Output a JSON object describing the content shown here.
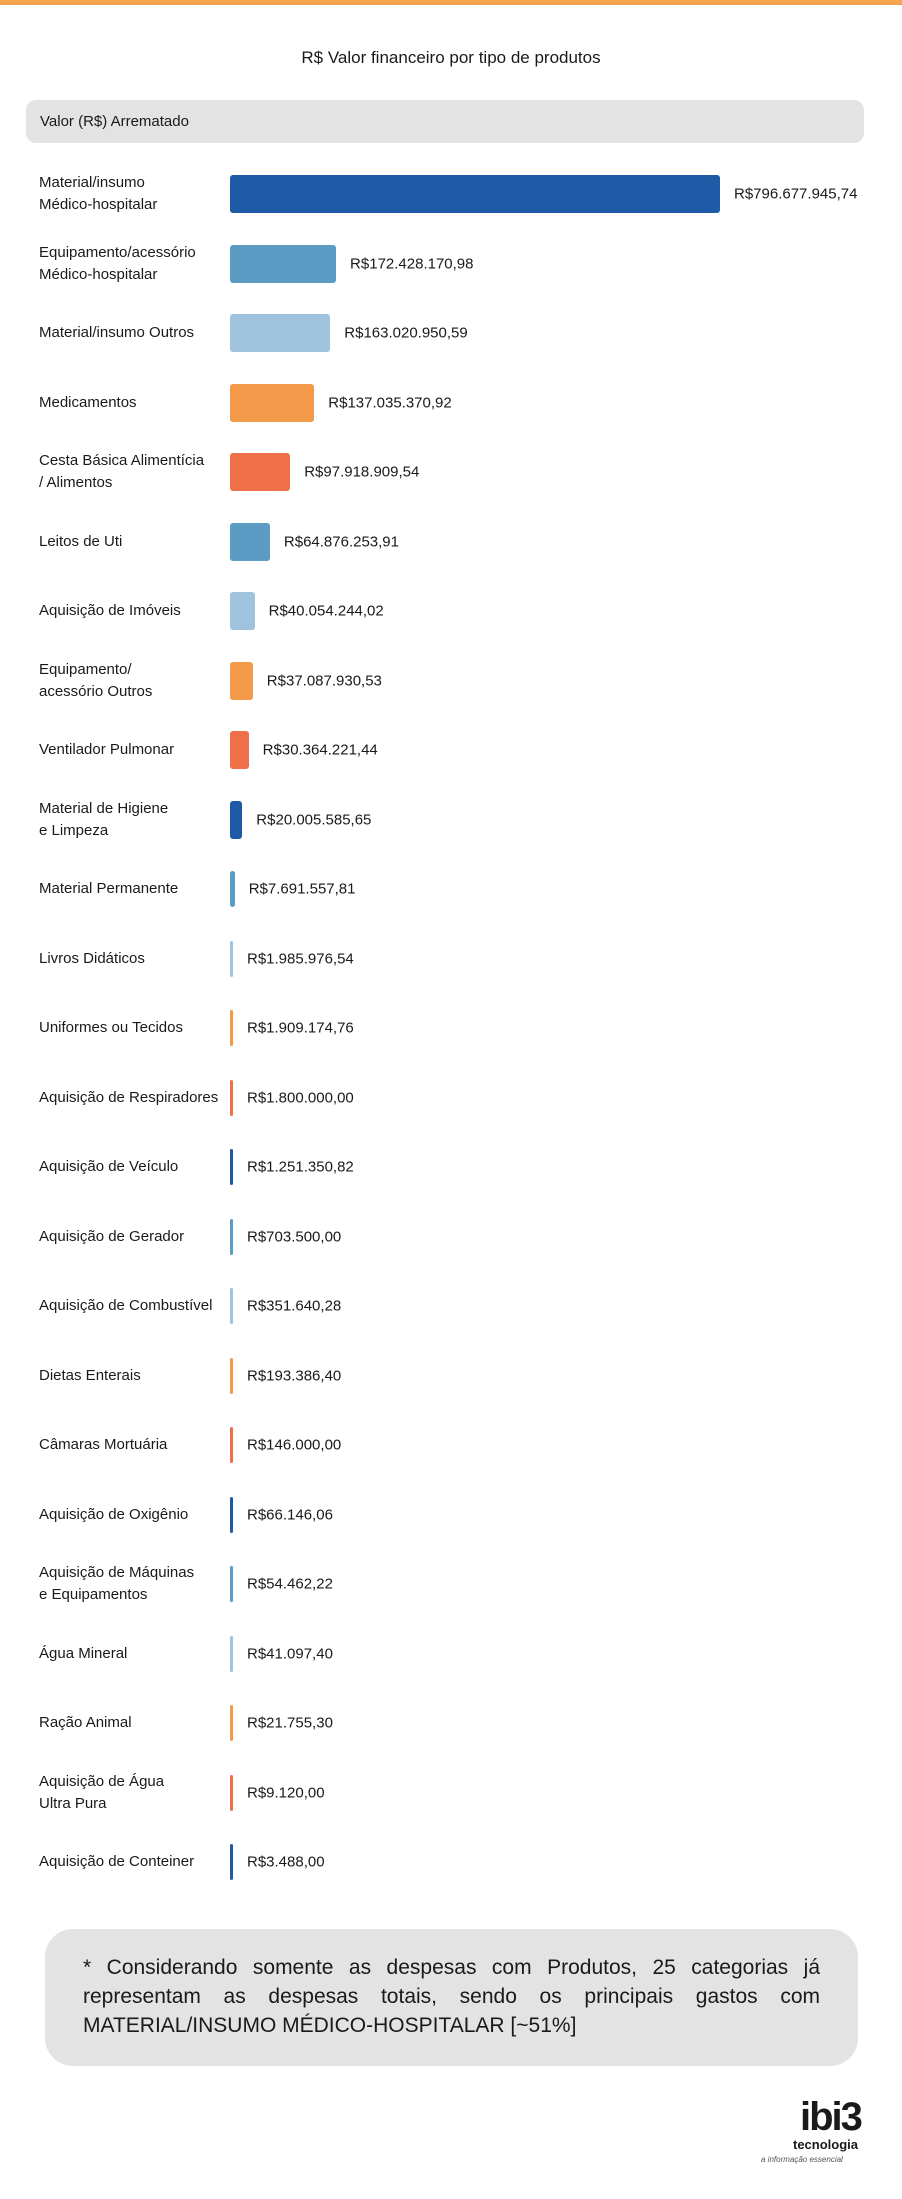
{
  "chart_data": {
    "type": "bar",
    "orientation": "horizontal",
    "title": "R$ Valor financeiro por tipo de produtos",
    "value_header": "Valor (R$) Arrematado",
    "categories": [
      "Material/insumo\nMédico-hospitalar",
      "Equipamento/acessório\nMédico-hospitalar",
      "Material/insumo Outros",
      "Medicamentos",
      "Cesta Básica Alimentícia\n/ Alimentos",
      "Leitos de Uti",
      "Aquisição de Imóveis",
      "Equipamento/\nacessório Outros",
      "Ventilador Pulmonar",
      "Material de Higiene\ne Limpeza",
      "Material Permanente",
      "Livros Didáticos",
      "Uniformes ou Tecidos",
      "Aquisição de Respiradores",
      "Aquisição de Veículo",
      "Aquisição de Gerador",
      "Aquisição de Combustível",
      "Dietas Enterais",
      "Câmaras Mortuária",
      "Aquisição de Oxigênio",
      "Aquisição de Máquinas\ne Equipamentos",
      "Água Mineral",
      "Ração Animal",
      "Aquisição de Água\nUltra Pura",
      "Aquisição de Conteiner"
    ],
    "values": [
      796677945.74,
      172428170.98,
      163020950.59,
      137035370.92,
      97918909.54,
      64876253.91,
      40054244.02,
      37087930.53,
      30364221.44,
      20005585.65,
      7691557.81,
      1985976.54,
      1909174.76,
      1800000.0,
      1251350.82,
      703500.0,
      351640.28,
      193386.4,
      146000.0,
      66146.06,
      54462.22,
      41097.4,
      21755.3,
      9120.0,
      3488.0
    ],
    "value_labels": [
      "R$796.677.945,74",
      "R$172.428.170,98",
      "R$163.020.950,59",
      "R$137.035.370,92",
      "R$97.918.909,54",
      "R$64.876.253,91",
      "R$40.054.244,02",
      "R$37.087.930,53",
      "R$30.364.221,44",
      "R$20.005.585,65",
      "R$7.691.557,81",
      "R$1.985.976,54",
      "R$1.909.174,76",
      "R$1.800.000,00",
      "R$1.251.350,82",
      "R$703.500,00",
      "R$351.640,28",
      "R$193.386,40",
      "R$146.000,00",
      "R$66.146,06",
      "R$54.462,22",
      "R$41.097,40",
      "R$21.755,30",
      "R$9.120,00",
      "R$3.488,00"
    ],
    "colors": [
      "#1f5aa6",
      "#5b9bc4",
      "#9fc3dc",
      "#f39a4a",
      "#ef7048",
      "#5b9bc4",
      "#9fc3dc",
      "#f39a4a",
      "#ef7048",
      "#1f5aa6",
      "#5b9bc4",
      "#9fc3dc",
      "#f39a4a",
      "#ef7048",
      "#1f5aa6",
      "#5b9bc4",
      "#9fc3dc",
      "#f39a4a",
      "#ef7048",
      "#1f5aa6",
      "#5b9bc4",
      "#9fc3dc",
      "#f39a4a",
      "#ef7048",
      "#1f5aa6"
    ]
  },
  "footnote": "* Considerando somente as despesas com Produtos, 25 categorias já representam as despesas totais, sendo os principais gastos com MATERIAL/INSUMO MÉDICO-HOSPITALAR [~51%]",
  "logo": {
    "name": "ibi3",
    "tagline": "tecnologia",
    "slogan": "a informação essencial"
  }
}
